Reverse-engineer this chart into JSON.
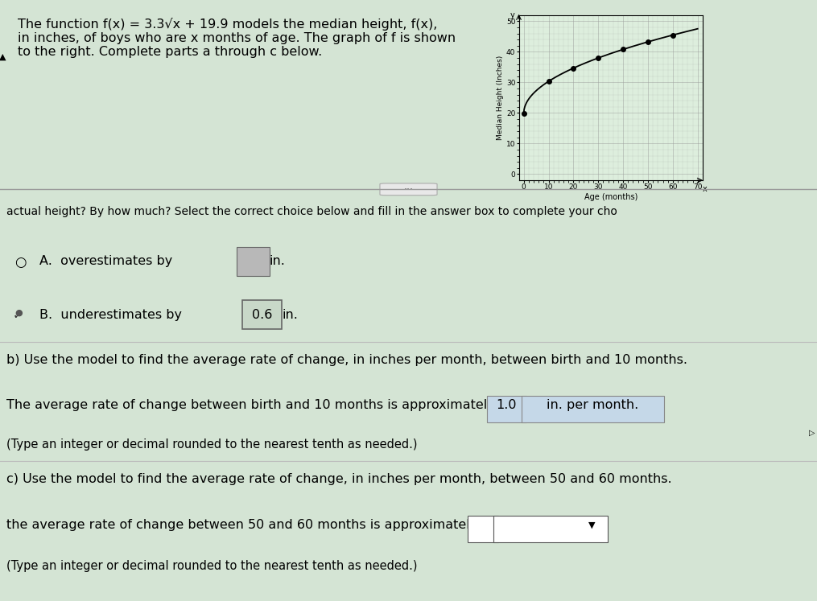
{
  "title_text": "The function f(x) = 3.3√x + 19.9 models the median height, f(x),\nin inches, of boys who are x months of age. The graph of f is shown\nto the right. Complete parts a through c below.",
  "graph_xlabel": "Age (months)",
  "graph_ylabel": "Median Height (Inches)",
  "graph_xlim": [
    0,
    70
  ],
  "graph_ylim": [
    0,
    50
  ],
  "graph_xticks": [
    0,
    10,
    20,
    30,
    40,
    50,
    60,
    70
  ],
  "graph_yticks": [
    0,
    10,
    20,
    30,
    40,
    50
  ],
  "dot_x_values": [
    0,
    10,
    20,
    30,
    40,
    50,
    60
  ],
  "func_a": 3.3,
  "func_b": 19.9,
  "bg_color": "#d4e4d4",
  "plot_bg_color": "#ddeedd",
  "grid_color": "#999999",
  "curve_color": "#000000",
  "dot_color": "#000000",
  "line_sep_color": "#aaaaaa",
  "text_color": "#000000",
  "highlight_blue": "#c5d8e8",
  "highlight_green": "#c8d8c8",
  "highlight_gray": "#b8b8b8"
}
